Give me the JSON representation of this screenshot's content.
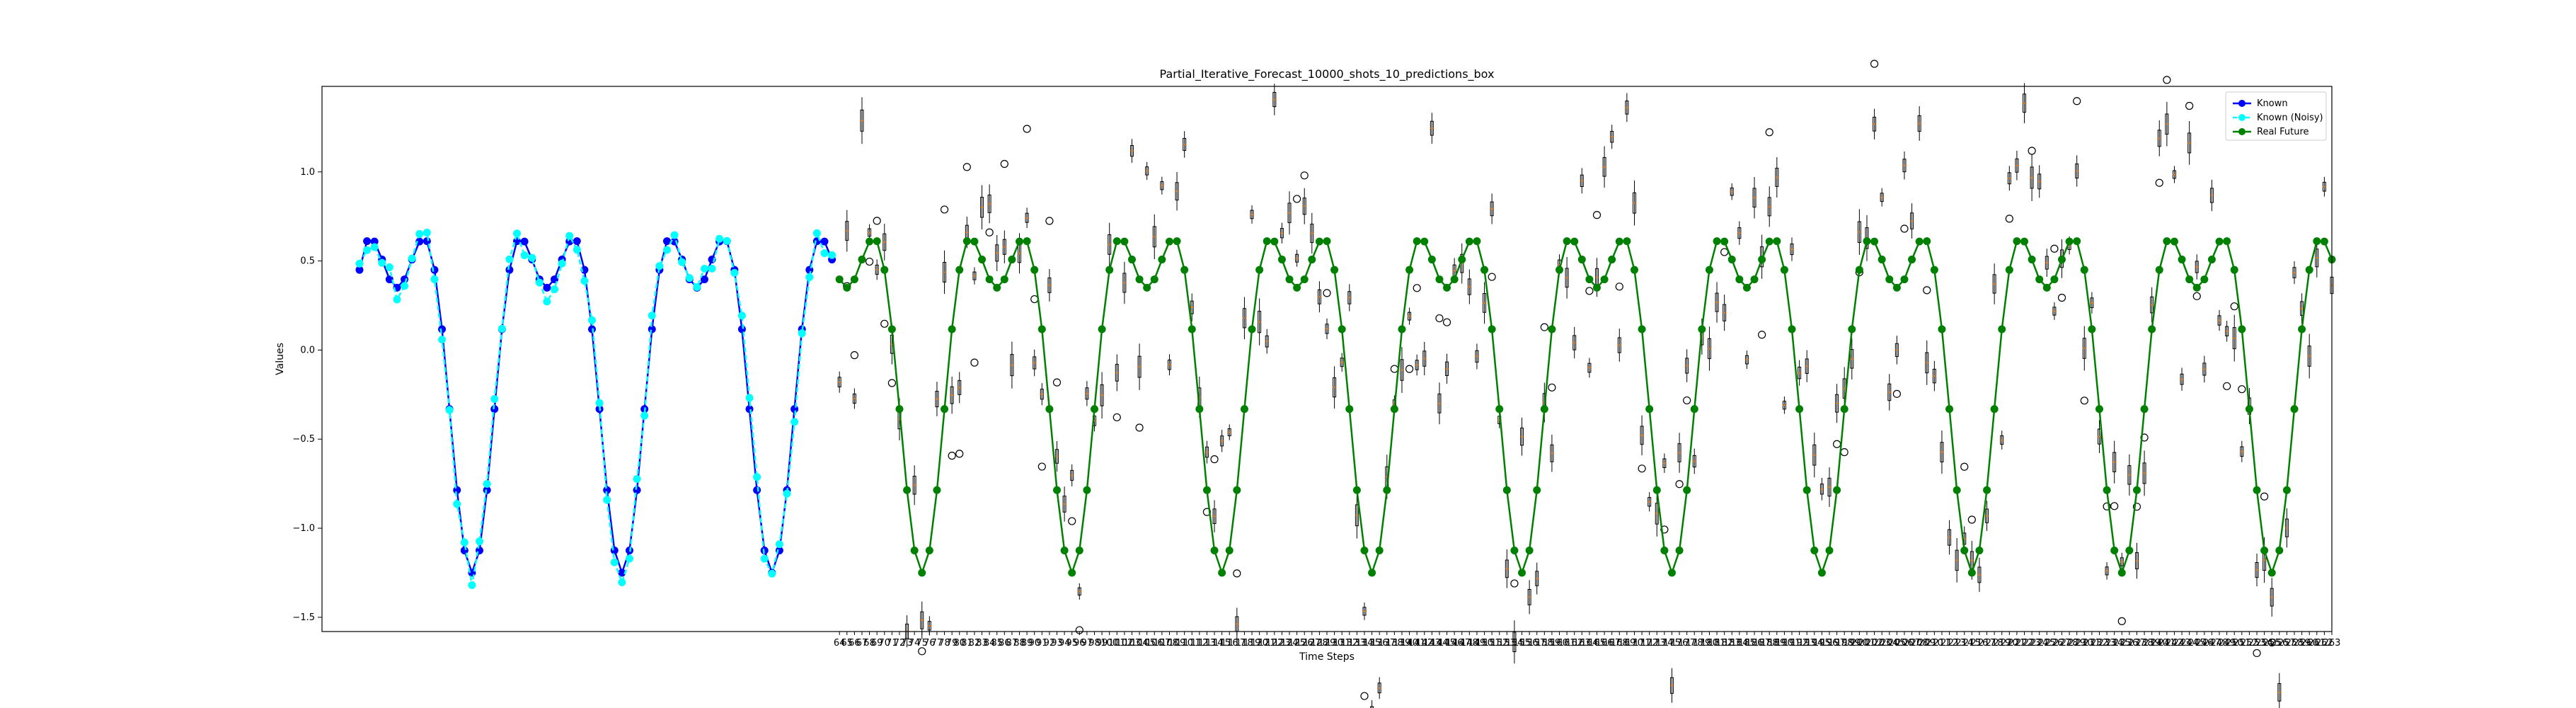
{
  "chart_data": {
    "type": "line",
    "title": "Partial_Iterative_Forecast_10000_shots_10_predictions_box",
    "xlabel": "Time Steps",
    "ylabel": "Values",
    "x_range": [
      -5,
      263
    ],
    "ylim": [
      -1.58,
      1.48
    ],
    "y_ticks": [
      -1.5,
      -1.0,
      -0.5,
      0.0,
      0.5,
      1.0
    ],
    "y_tick_labels": [
      "−1.5",
      "−1.0",
      "−0.5",
      "0.0",
      "0.5",
      "1.0"
    ],
    "x_tick_start": 64,
    "x_tick_end": 263,
    "grid": false,
    "legend_position": "top-right",
    "series": [
      {
        "name": "Known",
        "color": "#0000ff",
        "linestyle": "solid",
        "x_start": 0,
        "x_end": 63,
        "sample_every": 1
      },
      {
        "name": "Known (Noisy)",
        "color": "#00ffff",
        "linestyle": "dashed",
        "x_start": 0,
        "x_end": 63,
        "sample_every": 1
      },
      {
        "name": "Real Future",
        "color": "#008000",
        "linestyle": "solid",
        "x_start": 64,
        "x_end": 263,
        "sample_every": 1
      }
    ],
    "signal": {
      "amp1": 0.8,
      "period1": 20,
      "amp2": 0.45,
      "period2": 10,
      "offset": 0
    },
    "predictions_box": {
      "x_start": 64,
      "x_end": 263,
      "whisker_color": "#000000",
      "median_color": "#ff7f0e",
      "outlier_marker": "circle"
    }
  }
}
